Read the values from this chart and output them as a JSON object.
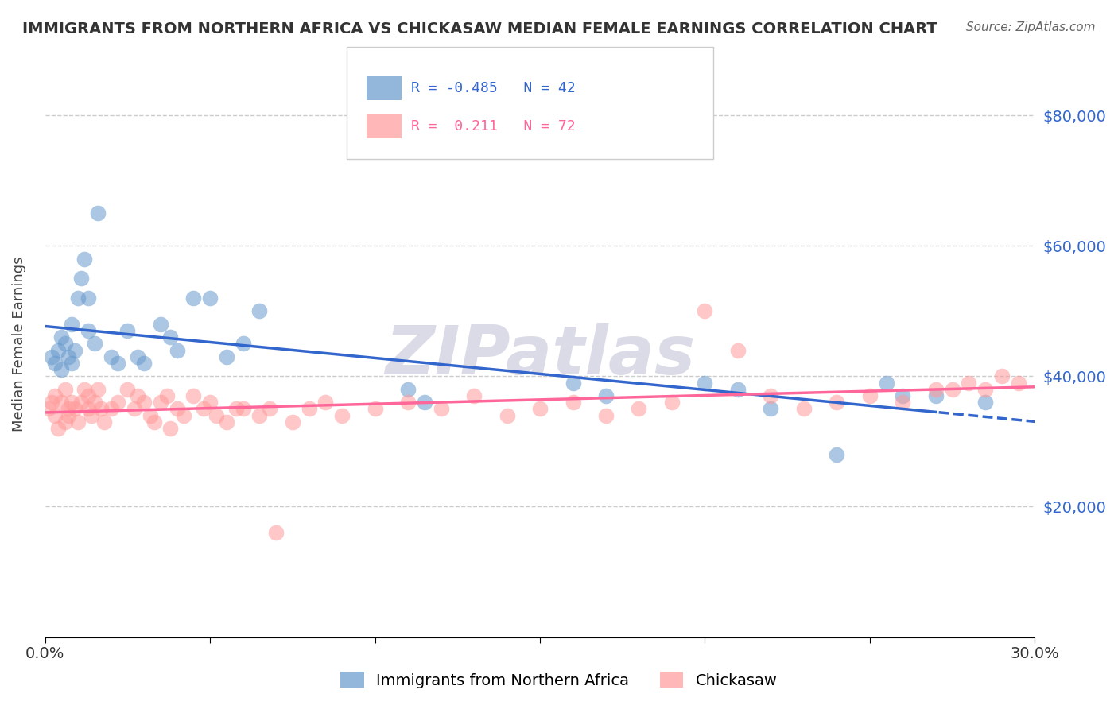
{
  "title": "IMMIGRANTS FROM NORTHERN AFRICA VS CHICKASAW MEDIAN FEMALE EARNINGS CORRELATION CHART",
  "source": "Source: ZipAtlas.com",
  "xlabel": "",
  "ylabel": "Median Female Earnings",
  "x_min": 0.0,
  "x_max": 0.3,
  "y_min": 0,
  "y_max": 90000,
  "y_ticks": [
    20000,
    40000,
    60000,
    80000
  ],
  "y_tick_labels": [
    "$20,000",
    "$40,000",
    "$60,000",
    "$80,000"
  ],
  "x_ticks": [
    0.0,
    0.05,
    0.1,
    0.15,
    0.2,
    0.25,
    0.3
  ],
  "x_tick_labels": [
    "0.0%",
    "",
    "",
    "",
    "",
    "",
    "30.0%"
  ],
  "blue_label": "Immigrants from Northern Africa",
  "pink_label": "Chickasaw",
  "blue_R": -0.485,
  "blue_N": 42,
  "pink_R": 0.211,
  "pink_N": 72,
  "blue_color": "#6699CC",
  "pink_color": "#FF9999",
  "blue_line_color": "#3366CC",
  "pink_line_color": "#FF6699",
  "watermark": "ZIPatlas",
  "watermark_color": "#CCCCDD",
  "blue_x": [
    0.002,
    0.003,
    0.004,
    0.005,
    0.005,
    0.006,
    0.007,
    0.008,
    0.008,
    0.009,
    0.01,
    0.011,
    0.012,
    0.013,
    0.013,
    0.015,
    0.016,
    0.02,
    0.022,
    0.025,
    0.028,
    0.03,
    0.035,
    0.038,
    0.04,
    0.045,
    0.05,
    0.055,
    0.06,
    0.065,
    0.11,
    0.115,
    0.16,
    0.17,
    0.2,
    0.21,
    0.22,
    0.24,
    0.255,
    0.26,
    0.27,
    0.285
  ],
  "blue_y": [
    43000,
    42000,
    44000,
    46000,
    41000,
    45000,
    43000,
    48000,
    42000,
    44000,
    52000,
    55000,
    58000,
    52000,
    47000,
    45000,
    65000,
    43000,
    42000,
    47000,
    43000,
    42000,
    48000,
    46000,
    44000,
    52000,
    52000,
    43000,
    45000,
    50000,
    38000,
    36000,
    39000,
    37000,
    39000,
    38000,
    35000,
    28000,
    39000,
    37000,
    37000,
    36000
  ],
  "pink_x": [
    0.001,
    0.002,
    0.003,
    0.003,
    0.004,
    0.005,
    0.006,
    0.006,
    0.007,
    0.007,
    0.008,
    0.009,
    0.01,
    0.011,
    0.012,
    0.013,
    0.013,
    0.014,
    0.015,
    0.016,
    0.017,
    0.018,
    0.02,
    0.022,
    0.025,
    0.027,
    0.028,
    0.03,
    0.032,
    0.033,
    0.035,
    0.037,
    0.038,
    0.04,
    0.042,
    0.045,
    0.048,
    0.05,
    0.052,
    0.055,
    0.058,
    0.06,
    0.065,
    0.068,
    0.07,
    0.075,
    0.08,
    0.085,
    0.09,
    0.1,
    0.11,
    0.12,
    0.13,
    0.14,
    0.15,
    0.16,
    0.17,
    0.18,
    0.19,
    0.2,
    0.21,
    0.22,
    0.23,
    0.24,
    0.25,
    0.26,
    0.27,
    0.275,
    0.28,
    0.285,
    0.29,
    0.295
  ],
  "pink_y": [
    35000,
    36000,
    34000,
    37000,
    32000,
    36000,
    33000,
    38000,
    35000,
    34000,
    36000,
    35000,
    33000,
    36000,
    38000,
    35000,
    37000,
    34000,
    36000,
    38000,
    35000,
    33000,
    35000,
    36000,
    38000,
    35000,
    37000,
    36000,
    34000,
    33000,
    36000,
    37000,
    32000,
    35000,
    34000,
    37000,
    35000,
    36000,
    34000,
    33000,
    35000,
    35000,
    34000,
    35000,
    16000,
    33000,
    35000,
    36000,
    34000,
    35000,
    36000,
    35000,
    37000,
    34000,
    35000,
    36000,
    34000,
    35000,
    36000,
    50000,
    44000,
    37000,
    35000,
    36000,
    37000,
    36000,
    38000,
    38000,
    39000,
    38000,
    40000,
    39000
  ]
}
